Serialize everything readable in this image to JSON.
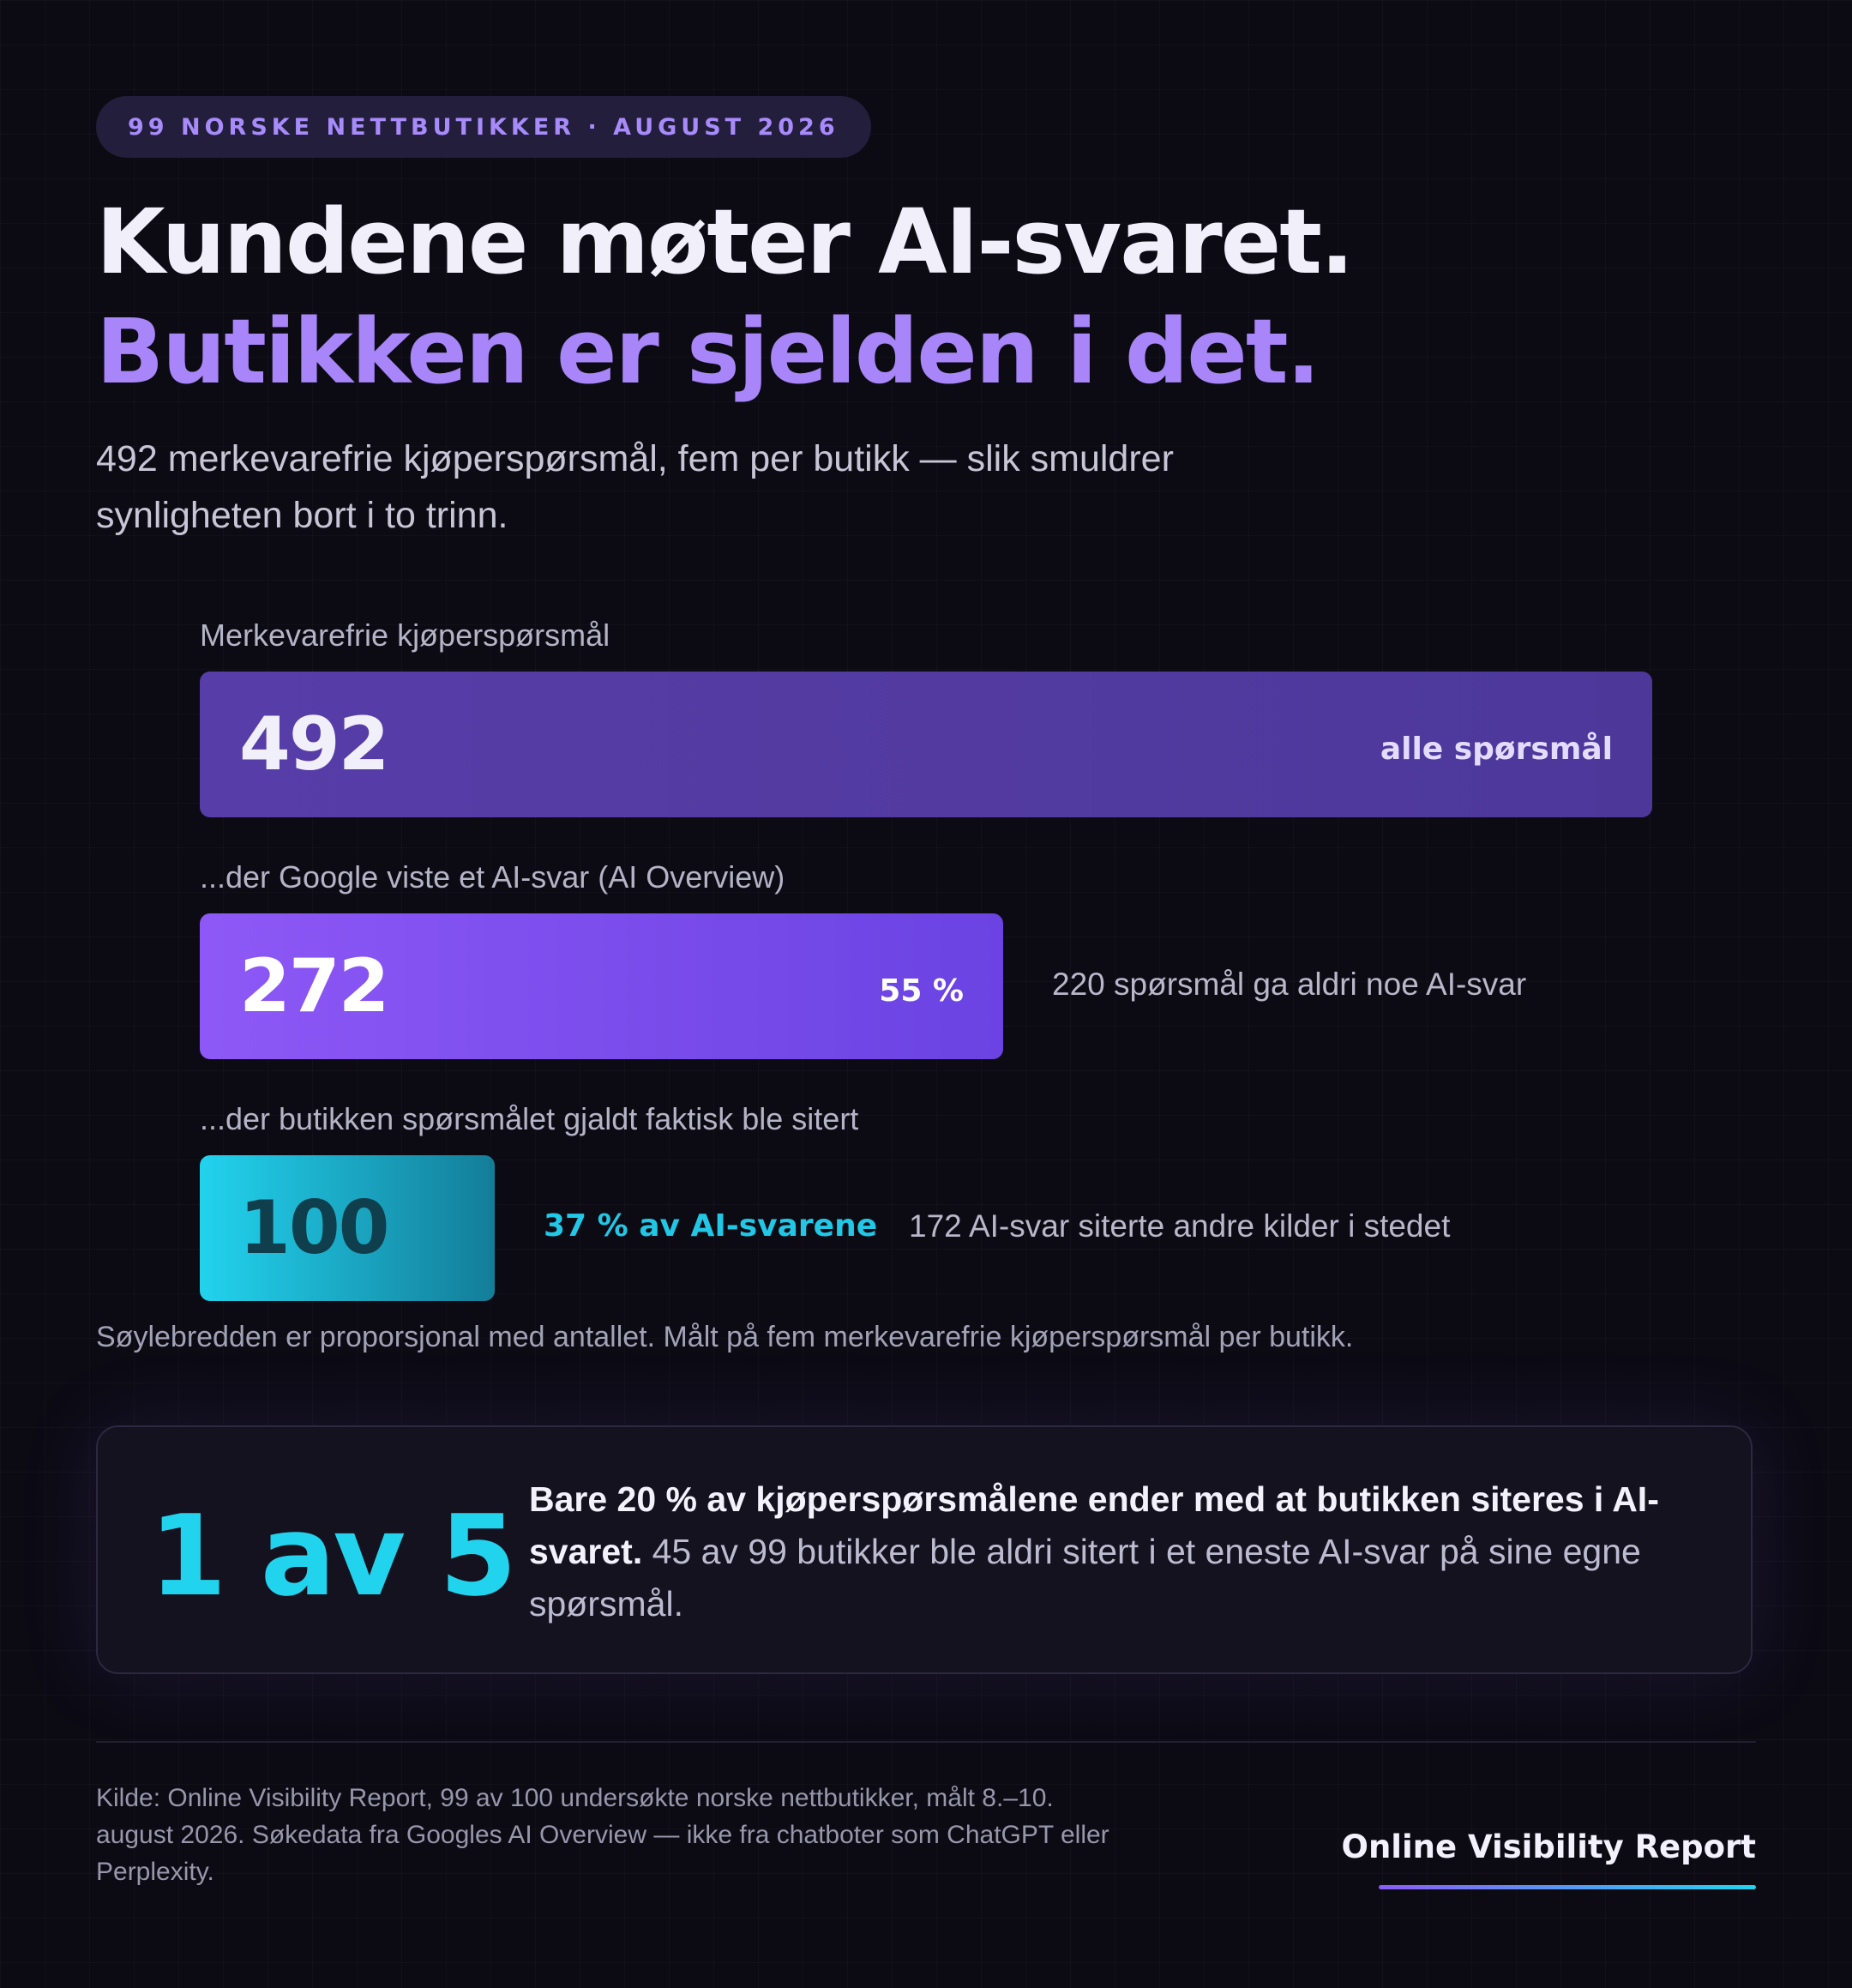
{
  "tag": "99 NORSKE NETTBUTIKKER · AUGUST 2026",
  "headline": {
    "line1": "Kundene møter AI-svaret.",
    "line2": "Butikken er sjelden i det."
  },
  "subtitle": "492 merkevarefrie kjøperspørsmål, fem per butikk — slik smuldrer synligheten bort i to trinn.",
  "colors": {
    "background": "#0c0b14",
    "accent_purple": "#a885f8",
    "accent_cyan": "#22d3ee"
  },
  "chart_data": {
    "type": "bar",
    "orientation": "horizontal",
    "title": "",
    "xlabel": "",
    "ylabel": "",
    "categories": [
      "Merkevarefrie kjøperspørsmål",
      "...der Google viste et AI-svar (AI Overview)",
      "...der butikken spørsmålet gjaldt faktisk ble sitert"
    ],
    "values": [
      492,
      272,
      100
    ],
    "xlim": [
      0,
      492
    ],
    "value_labels": [
      "492",
      "272",
      "100"
    ],
    "inner_labels": [
      "alle spørsmål",
      "55 %",
      ""
    ],
    "share_labels": [
      "",
      "",
      "37 % av AI-svarene"
    ],
    "notes": [
      "",
      "220 spørsmål ga aldri noe AI-svar",
      "172 AI-svar siterte andre kilder i stedet"
    ],
    "bar_colors": [
      "#4f3aa2",
      "#7b51ee",
      "#1ab9d6"
    ],
    "grid": false,
    "legend": "none"
  },
  "chart_footnote": "Søylebredden er proporsjonal med antallet. Målt på fem merkevarefrie kjøperspørsmål per butikk.",
  "callout": {
    "big": "1 av 5",
    "bold": "Bare 20 % av kjøperspørsmålene ender med at butikken siteres i AI-svaret.",
    "rest": " 45 av 99 butikker ble aldri sitert i et eneste AI-svar på sine egne spørsmål."
  },
  "source": "Kilde: Online Visibility Report, 99 av 100 undersøkte norske nettbutikker, målt 8.–10. august 2026. Søkedata fra Googles AI Overview — ikke fra chatboter som ChatGPT eller Perplexity.",
  "brand": "Online Visibility Report"
}
